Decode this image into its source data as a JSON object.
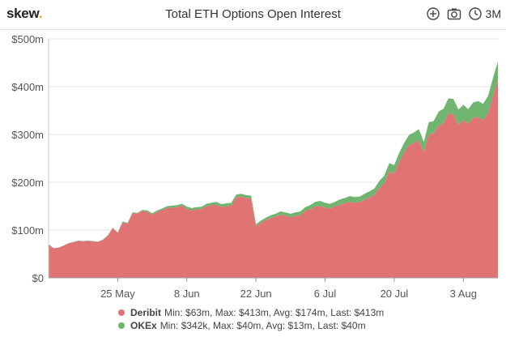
{
  "header": {
    "logo_text": "skew",
    "logo_dot": ".",
    "title": "Total ETH Options Open Interest",
    "range_label": "3M",
    "icons": [
      "zoom-in-icon",
      "camera-icon",
      "clock-icon"
    ]
  },
  "colors": {
    "deribit": "#e07474",
    "okex": "#6fb56f",
    "grid": "#e6e6e6",
    "axis": "#555555",
    "logo_dot": "#f0a020"
  },
  "legend": [
    {
      "name": "Deribit",
      "stats": "Min: $63m, Max: $413m, Avg: $174m, Last: $413m"
    },
    {
      "name": "OKEx",
      "stats": "Min: $342k, Max: $40m, Avg: $13m, Last: $40m"
    }
  ],
  "chart_data": {
    "type": "area",
    "stacked": true,
    "title": "Total ETH Options Open Interest",
    "xlabel": "",
    "ylabel": "",
    "ylim": [
      0,
      500
    ],
    "y_unit": "$m",
    "y_ticks": [
      "$0",
      "$100m",
      "$200m",
      "$300m",
      "$400m",
      "$500m"
    ],
    "x_ticks": [
      {
        "day": 14,
        "label": "25 May"
      },
      {
        "day": 28,
        "label": "8 Jun"
      },
      {
        "day": 42,
        "label": "22 Jun"
      },
      {
        "day": 56,
        "label": "6 Jul"
      },
      {
        "day": 70,
        "label": "20 Jul"
      },
      {
        "day": 84,
        "label": "3 Aug"
      }
    ],
    "x_range": [
      0,
      91
    ],
    "grid": true,
    "legend_position": "bottom",
    "series": [
      {
        "name": "Deribit",
        "points": [
          [
            0,
            70
          ],
          [
            1,
            62
          ],
          [
            2,
            63
          ],
          [
            3,
            67
          ],
          [
            4,
            72
          ],
          [
            5,
            74
          ],
          [
            6,
            77
          ],
          [
            7,
            76
          ],
          [
            8,
            77
          ],
          [
            9,
            76
          ],
          [
            10,
            75
          ],
          [
            11,
            79
          ],
          [
            12,
            88
          ],
          [
            13,
            104
          ],
          [
            14,
            94
          ],
          [
            15,
            116
          ],
          [
            16,
            113
          ],
          [
            17,
            135
          ],
          [
            18,
            134
          ],
          [
            19,
            140
          ],
          [
            20,
            138
          ],
          [
            21,
            132
          ],
          [
            22,
            138
          ],
          [
            23,
            142
          ],
          [
            24,
            146
          ],
          [
            25,
            147
          ],
          [
            26,
            148
          ],
          [
            27,
            151
          ],
          [
            28,
            144
          ],
          [
            29,
            141
          ],
          [
            30,
            143
          ],
          [
            31,
            144
          ],
          [
            32,
            150
          ],
          [
            33,
            152
          ],
          [
            34,
            153
          ],
          [
            35,
            148
          ],
          [
            36,
            150
          ],
          [
            37,
            151
          ],
          [
            38,
            168
          ],
          [
            39,
            170
          ],
          [
            40,
            167
          ],
          [
            41,
            166
          ],
          [
            42,
            108
          ],
          [
            43,
            115
          ],
          [
            44,
            121
          ],
          [
            45,
            125
          ],
          [
            46,
            128
          ],
          [
            47,
            132
          ],
          [
            48,
            130
          ],
          [
            49,
            127
          ],
          [
            50,
            129
          ],
          [
            51,
            131
          ],
          [
            52,
            140
          ],
          [
            53,
            143
          ],
          [
            54,
            149
          ],
          [
            55,
            150
          ],
          [
            56,
            147
          ],
          [
            57,
            145
          ],
          [
            58,
            149
          ],
          [
            59,
            153
          ],
          [
            60,
            156
          ],
          [
            61,
            159
          ],
          [
            62,
            157
          ],
          [
            63,
            158
          ],
          [
            64,
            163
          ],
          [
            65,
            168
          ],
          [
            66,
            173
          ],
          [
            67,
            188
          ],
          [
            68,
            198
          ],
          [
            69,
            222
          ],
          [
            70,
            218
          ],
          [
            71,
            242
          ],
          [
            72,
            262
          ],
          [
            73,
            278
          ],
          [
            74,
            282
          ],
          [
            75,
            288
          ],
          [
            76,
            262
          ],
          [
            77,
            300
          ],
          [
            78,
            302
          ],
          [
            79,
            318
          ],
          [
            80,
            324
          ],
          [
            81,
            344
          ],
          [
            82,
            342
          ],
          [
            83,
            320
          ],
          [
            84,
            330
          ],
          [
            85,
            322
          ],
          [
            86,
            335
          ],
          [
            87,
            336
          ],
          [
            88,
            330
          ],
          [
            89,
            345
          ],
          [
            90,
            380
          ],
          [
            91,
            413
          ]
        ]
      },
      {
        "name": "OKEx",
        "points": [
          [
            0,
            0.3
          ],
          [
            1,
            0.3
          ],
          [
            2,
            0.3
          ],
          [
            3,
            0.4
          ],
          [
            4,
            0.5
          ],
          [
            5,
            1
          ],
          [
            6,
            1
          ],
          [
            7,
            1
          ],
          [
            8,
            1
          ],
          [
            9,
            1
          ],
          [
            10,
            1
          ],
          [
            11,
            1
          ],
          [
            12,
            1
          ],
          [
            13,
            1
          ],
          [
            14,
            1
          ],
          [
            15,
            2
          ],
          [
            16,
            2
          ],
          [
            17,
            2
          ],
          [
            18,
            2
          ],
          [
            19,
            2
          ],
          [
            20,
            3
          ],
          [
            21,
            3
          ],
          [
            22,
            3
          ],
          [
            23,
            3
          ],
          [
            24,
            4
          ],
          [
            25,
            4
          ],
          [
            26,
            4
          ],
          [
            27,
            4
          ],
          [
            28,
            5
          ],
          [
            29,
            5
          ],
          [
            30,
            5
          ],
          [
            31,
            5
          ],
          [
            32,
            5
          ],
          [
            33,
            5
          ],
          [
            34,
            6
          ],
          [
            35,
            6
          ],
          [
            36,
            6
          ],
          [
            37,
            6
          ],
          [
            38,
            6
          ],
          [
            39,
            6
          ],
          [
            40,
            6
          ],
          [
            41,
            6
          ],
          [
            42,
            4
          ],
          [
            43,
            5
          ],
          [
            44,
            5
          ],
          [
            45,
            6
          ],
          [
            46,
            6
          ],
          [
            47,
            7
          ],
          [
            48,
            7
          ],
          [
            49,
            7
          ],
          [
            50,
            8
          ],
          [
            51,
            8
          ],
          [
            52,
            8
          ],
          [
            53,
            9
          ],
          [
            54,
            10
          ],
          [
            55,
            11
          ],
          [
            56,
            10
          ],
          [
            57,
            10
          ],
          [
            58,
            10
          ],
          [
            59,
            11
          ],
          [
            60,
            11
          ],
          [
            61,
            12
          ],
          [
            62,
            12
          ],
          [
            63,
            12
          ],
          [
            64,
            13
          ],
          [
            65,
            13
          ],
          [
            66,
            14
          ],
          [
            67,
            15
          ],
          [
            68,
            16
          ],
          [
            69,
            18
          ],
          [
            70,
            18
          ],
          [
            71,
            19
          ],
          [
            72,
            20
          ],
          [
            73,
            21
          ],
          [
            74,
            22
          ],
          [
            75,
            23
          ],
          [
            76,
            22
          ],
          [
            77,
            26
          ],
          [
            78,
            26
          ],
          [
            79,
            30
          ],
          [
            80,
            30
          ],
          [
            81,
            32
          ],
          [
            82,
            32
          ],
          [
            83,
            32
          ],
          [
            84,
            32
          ],
          [
            85,
            31
          ],
          [
            86,
            32
          ],
          [
            87,
            34
          ],
          [
            88,
            34
          ],
          [
            89,
            35
          ],
          [
            90,
            38
          ],
          [
            91,
            40
          ]
        ]
      }
    ]
  }
}
